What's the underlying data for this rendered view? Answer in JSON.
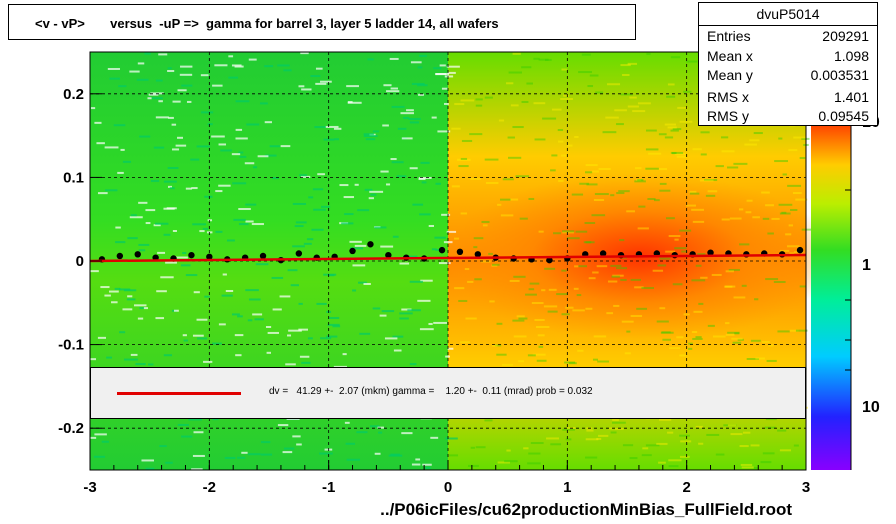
{
  "title": "<v - vP>       versus  -uP =>  gamma for barrel 3, layer 5 ladder 14, all wafers",
  "stats": {
    "name": "dvuP5014",
    "rows": [
      {
        "key": "Entries",
        "value": "209291"
      },
      {
        "key": "Mean x",
        "value": "1.098"
      },
      {
        "key": "Mean y",
        "value": "0.003531"
      },
      {
        "key": "RMS x",
        "value": "1.401"
      },
      {
        "key": "RMS y",
        "value": "0.09545"
      }
    ]
  },
  "legend": {
    "text": "dv =   41.29 +-  2.07 (mkm) gamma =    1.20 +-  0.11 (mrad) prob = 0.032",
    "line_color": "#e00000"
  },
  "x_axis_title": "../P06icFiles/cu62productionMinBias_FullField.root",
  "colors": {
    "left_fill": "#22cc22",
    "right_fill": "#ff8800",
    "fit_line": "#e00000",
    "profile_points": "#000000"
  },
  "chart_data": {
    "type": "heatmap",
    "title": "<v - vP>       versus  -uP =>  gamma for barrel 3, layer 5 ladder 14, all wafers",
    "xlim": [
      -3,
      3
    ],
    "ylim": [
      -0.25,
      0.25
    ],
    "x_ticks": [
      -3,
      -2,
      -1,
      0,
      1,
      2,
      3
    ],
    "x_tick_labels": [
      "-3",
      "-2",
      "-1",
      "0",
      "1",
      "2",
      "3"
    ],
    "y_ticks": [
      -0.2,
      -0.1,
      0,
      0.1,
      0.2
    ],
    "y_tick_labels": [
      "-0.2",
      "-0.1",
      "0",
      "0.1",
      "0.2"
    ],
    "grid": true,
    "colorbar": {
      "scale": "log",
      "tick_labels": [
        "10",
        "1",
        "10"
      ]
    },
    "fit": {
      "type": "line",
      "x": [
        -3,
        3
      ],
      "y": [
        0.0,
        0.0072
      ]
    },
    "profile": {
      "x": [
        -2.9,
        -2.75,
        -2.6,
        -2.45,
        -2.3,
        -2.15,
        -2.0,
        -1.85,
        -1.7,
        -1.55,
        -1.4,
        -1.25,
        -1.1,
        -0.95,
        -0.8,
        -0.65,
        -0.5,
        -0.35,
        -0.2,
        -0.05,
        0.1,
        0.25,
        0.4,
        0.55,
        0.7,
        0.85,
        1.0,
        1.15,
        1.3,
        1.45,
        1.6,
        1.75,
        1.9,
        2.05,
        2.2,
        2.35,
        2.5,
        2.65,
        2.8,
        2.95
      ],
      "y": [
        0.002,
        0.006,
        0.008,
        0.004,
        0.003,
        0.007,
        0.005,
        0.002,
        0.004,
        0.006,
        0.001,
        0.009,
        0.004,
        0.005,
        0.012,
        0.02,
        0.007,
        0.004,
        0.003,
        0.013,
        0.011,
        0.008,
        0.004,
        0.003,
        0.002,
        0.001,
        0.003,
        0.008,
        0.009,
        0.007,
        0.008,
        0.009,
        0.007,
        0.008,
        0.01,
        0.009,
        0.008,
        0.009,
        0.008,
        0.013
      ]
    }
  }
}
